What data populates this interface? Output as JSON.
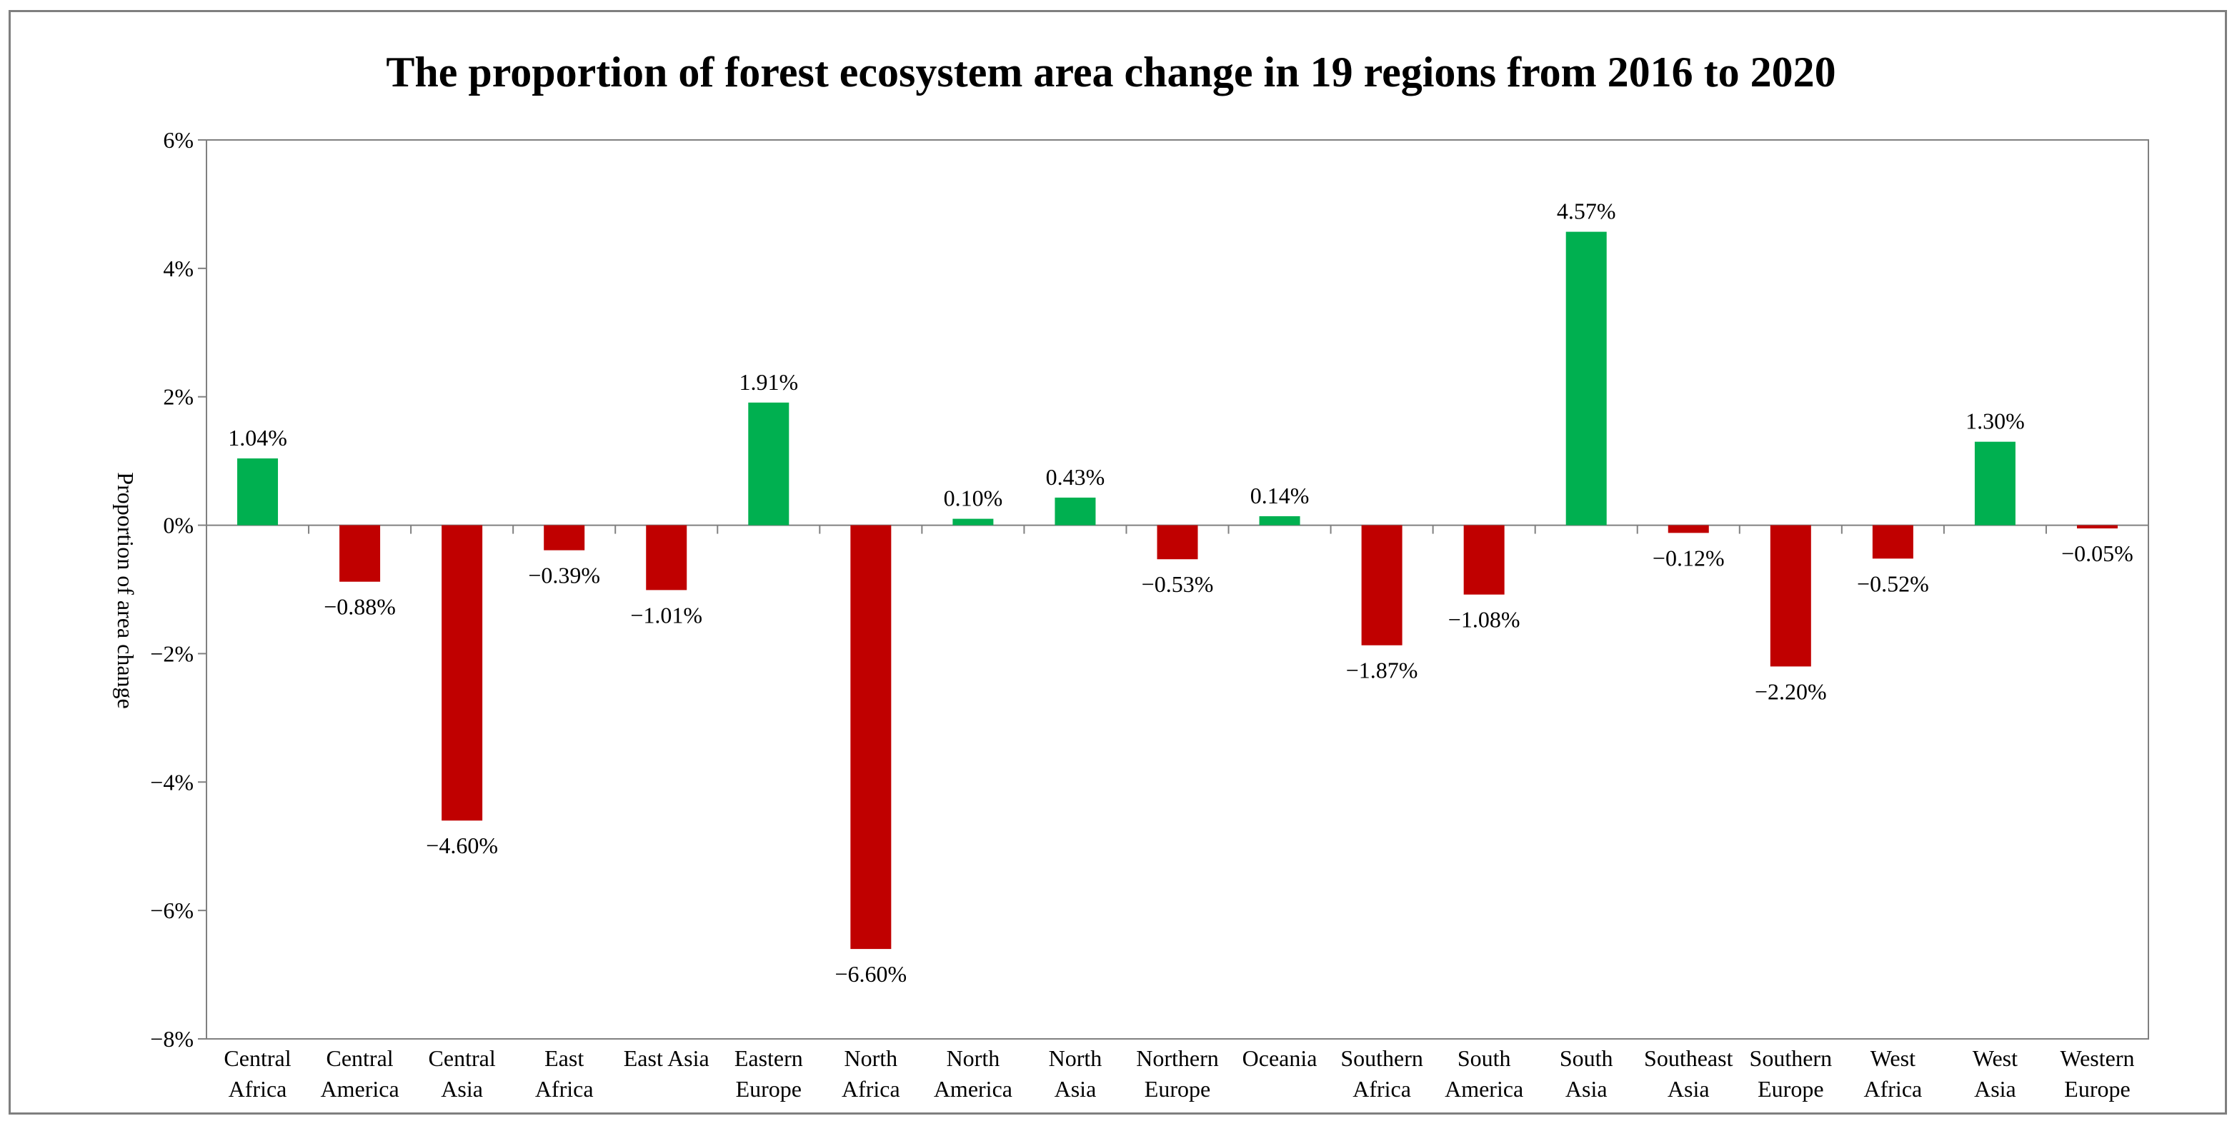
{
  "chart_data": {
    "type": "bar",
    "title": "The proportion of forest ecosystem area change in 19 regions from 2016 to 2020",
    "xlabel": "",
    "ylabel": "Proportion of area change",
    "ylim": [
      -8,
      6
    ],
    "yticks": [
      6,
      4,
      2,
      0,
      -2,
      -4,
      -6,
      -8
    ],
    "ytick_labels": [
      "6%",
      "4%",
      "2%",
      "0%",
      "−2%",
      "−4%",
      "−6%",
      "−8%"
    ],
    "categories": [
      [
        "Central",
        "Africa"
      ],
      [
        "Central",
        "America"
      ],
      [
        "Central",
        "Asia"
      ],
      [
        "East",
        "Africa"
      ],
      [
        "East Asia"
      ],
      [
        "Eastern",
        "Europe"
      ],
      [
        "North",
        "Africa"
      ],
      [
        "North",
        "America"
      ],
      [
        "North",
        "Asia"
      ],
      [
        "Northern",
        "Europe"
      ],
      [
        "Oceania"
      ],
      [
        "Southern",
        "Africa"
      ],
      [
        "South",
        "America"
      ],
      [
        "South",
        "Asia"
      ],
      [
        "Southeast",
        "Asia"
      ],
      [
        "Southern",
        "Europe"
      ],
      [
        "West",
        "Africa"
      ],
      [
        "West",
        "Asia"
      ],
      [
        "Western",
        "Europe"
      ]
    ],
    "values": [
      1.04,
      -0.88,
      -4.6,
      -0.39,
      -1.01,
      1.91,
      -6.6,
      0.1,
      0.43,
      -0.53,
      0.14,
      -1.87,
      -1.08,
      4.57,
      -0.12,
      -2.2,
      -0.52,
      1.3,
      -0.05
    ],
    "data_labels": [
      "1.04%",
      "−0.88%",
      "−4.60%",
      "−0.39%",
      "−1.01%",
      "1.91%",
      "−6.60%",
      "0.10%",
      "0.43%",
      "−0.53%",
      "0.14%",
      "−1.87%",
      "−1.08%",
      "4.57%",
      "−0.12%",
      "−2.20%",
      "−0.52%",
      "1.30%",
      "−0.05%"
    ],
    "colors": {
      "positive": "#00b050",
      "negative": "#c00000",
      "axis": "#808080",
      "frame": "#7f7f7f"
    },
    "grid": false,
    "legend": "none"
  }
}
